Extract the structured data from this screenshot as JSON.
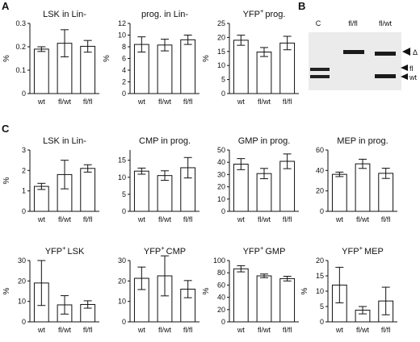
{
  "figure": {
    "panel_labels": {
      "a": "A",
      "b": "B",
      "c": "C"
    },
    "gel": {
      "lanes": [
        "C",
        "fl/fl",
        "fl/wt"
      ],
      "bands": [
        "Δ",
        "fl",
        "wt"
      ]
    }
  },
  "chart_data": [
    {
      "id": "a1",
      "type": "bar",
      "title": "LSK in Lin-",
      "title_sup": "",
      "title_rest": "",
      "ylabel": "%",
      "ylim": [
        0,
        0.3
      ],
      "yticks": [
        0,
        0.1,
        0.2,
        0.3
      ],
      "ytick_labels": [
        "0",
        "0.1",
        "0.2",
        "0.3"
      ],
      "categories": [
        "wt",
        "fl/wt",
        "fl/fl"
      ],
      "values": [
        0.19,
        0.215,
        0.202
      ],
      "errors": [
        0.01,
        0.058,
        0.025
      ]
    },
    {
      "id": "a2",
      "type": "bar",
      "title": "prog. in Lin-",
      "title_sup": "",
      "title_rest": "",
      "ylabel": "%",
      "ylim": [
        0,
        12
      ],
      "yticks": [
        0,
        2,
        4,
        6,
        8,
        10,
        12
      ],
      "ytick_labels": [
        "0",
        "2",
        "4",
        "6",
        "8",
        "10",
        "12"
      ],
      "categories": [
        "wt",
        "fl/wt",
        "fl/fl"
      ],
      "values": [
        8.4,
        8.3,
        9.2
      ],
      "errors": [
        1.3,
        1.0,
        0.8
      ]
    },
    {
      "id": "a3",
      "type": "bar",
      "title": "",
      "title_sup": "YFP",
      "title_rest": "prog.",
      "ylabel": "%",
      "ylim": [
        0,
        25
      ],
      "yticks": [
        0,
        5,
        10,
        15,
        20,
        25
      ],
      "ytick_labels": [
        "0",
        "5",
        "10",
        "15",
        "20",
        "25"
      ],
      "categories": [
        "wt",
        "fl/wt",
        "fl/fl"
      ],
      "values": [
        19.0,
        14.8,
        18.0
      ],
      "errors": [
        1.8,
        1.6,
        2.4
      ]
    },
    {
      "id": "c1",
      "type": "bar",
      "title": "LSK in Lin-",
      "title_sup": "",
      "title_rest": "",
      "ylabel": "%",
      "ylim": [
        0,
        3
      ],
      "yticks": [
        0,
        1,
        2,
        3
      ],
      "ytick_labels": [
        "0",
        "1",
        "2",
        "3"
      ],
      "categories": [
        "wt",
        "fl/wt",
        "fl/fl"
      ],
      "values": [
        1.22,
        1.8,
        2.1
      ],
      "errors": [
        0.15,
        0.7,
        0.18
      ]
    },
    {
      "id": "c2",
      "type": "bar",
      "title": "CMP in prog.",
      "title_sup": "",
      "title_rest": "",
      "ylabel": "",
      "ylim": [
        0,
        18
      ],
      "yticks": [
        0,
        5,
        10,
        15
      ],
      "ytick_labels": [
        "0",
        "5",
        "10",
        "15"
      ],
      "categories": [
        "wt",
        "fl/wt",
        "fl/fl"
      ],
      "values": [
        11.8,
        10.5,
        12.8
      ],
      "errors": [
        0.9,
        1.4,
        3.0
      ]
    },
    {
      "id": "c3",
      "type": "bar",
      "title": "GMP in prog.",
      "title_sup": "",
      "title_rest": "",
      "ylabel": "",
      "ylim": [
        0,
        50
      ],
      "yticks": [
        0,
        10,
        20,
        30,
        40,
        50
      ],
      "ytick_labels": [
        "0",
        "10",
        "20",
        "30",
        "40",
        "50"
      ],
      "categories": [
        "wt",
        "fl/wt",
        "fl/fl"
      ],
      "values": [
        38.5,
        30.8,
        40.8
      ],
      "errors": [
        4.5,
        4.2,
        6.0
      ]
    },
    {
      "id": "c4",
      "type": "bar",
      "title": "MEP in prog.",
      "title_sup": "",
      "title_rest": "",
      "ylabel": "",
      "ylim": [
        0,
        60
      ],
      "yticks": [
        0,
        20,
        40,
        60
      ],
      "ytick_labels": [
        "0",
        "20",
        "40",
        "60"
      ],
      "categories": [
        "wt",
        "fl/wt",
        "fl/fl"
      ],
      "values": [
        36.2,
        46.5,
        37.2
      ],
      "errors": [
        2.2,
        4.5,
        5.0
      ]
    },
    {
      "id": "c5",
      "type": "bar",
      "title": "",
      "title_sup": "YFP",
      "title_rest": "LSK",
      "ylabel": "%",
      "ylim": [
        0,
        30
      ],
      "yticks": [
        0,
        10,
        20,
        30
      ],
      "ytick_labels": [
        "0",
        "10",
        "20",
        "30"
      ],
      "categories": [
        "wt",
        "fl/wt",
        "fl/fl"
      ],
      "values": [
        19.0,
        8.3,
        8.5
      ],
      "errors": [
        11.0,
        4.5,
        1.8
      ]
    },
    {
      "id": "c6",
      "type": "bar",
      "title": "",
      "title_sup": "YFP",
      "title_rest": "CMP",
      "ylabel": "",
      "ylim": [
        0,
        30
      ],
      "yticks": [
        0,
        10,
        20,
        30
      ],
      "ytick_labels": [
        "0",
        "10",
        "20",
        "30"
      ],
      "categories": [
        "wt",
        "fl/wt",
        "fl/fl"
      ],
      "values": [
        21.3,
        22.5,
        16.0
      ],
      "errors": [
        5.5,
        9.8,
        4.2
      ]
    },
    {
      "id": "c7",
      "type": "bar",
      "title": "",
      "title_sup": "YFP",
      "title_rest": "GMP",
      "ylabel": "%",
      "ylim": [
        0,
        100
      ],
      "yticks": [
        0,
        20,
        40,
        60,
        80,
        100
      ],
      "ytick_labels": [
        "0",
        "20",
        "40",
        "60",
        "80",
        "100"
      ],
      "categories": [
        "wt",
        "fl/wt",
        "fl/fl"
      ],
      "values": [
        86.5,
        75.0,
        70.5
      ],
      "errors": [
        5.0,
        3.0,
        3.8
      ]
    },
    {
      "id": "c8",
      "type": "bar",
      "title": "",
      "title_sup": "YFP",
      "title_rest": "MEP",
      "ylabel": "%",
      "ylim": [
        0,
        20
      ],
      "yticks": [
        0,
        5,
        10,
        15,
        20
      ],
      "ytick_labels": [
        "0",
        "5",
        "10",
        "15",
        "20"
      ],
      "categories": [
        "wt",
        "fl/wt",
        "fl/fl"
      ],
      "values": [
        12.0,
        3.8,
        6.8
      ],
      "errors": [
        5.8,
        1.2,
        4.5
      ]
    }
  ]
}
